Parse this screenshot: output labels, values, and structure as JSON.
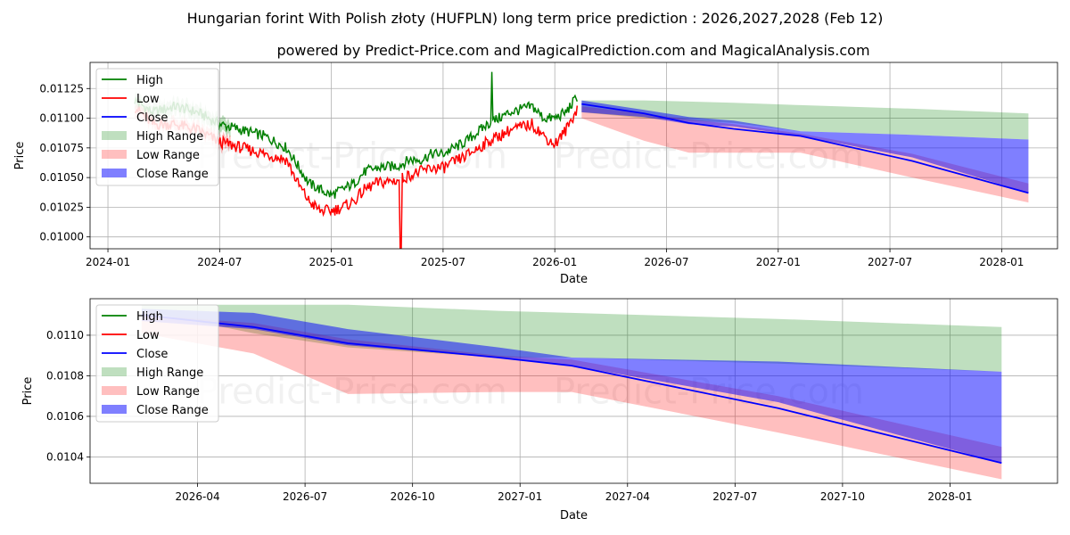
{
  "chart_data": [
    {
      "type": "line",
      "panel": "top",
      "title": "Hungarian forint With Polish złoty (HUFPLN) long term price prediction : 2026,2027,2028 (Feb 12)",
      "subtitle": "powered by Predict-Price.com and MagicalPrediction.com and MagicalAnalysis.com",
      "xlabel": "Date",
      "ylabel": "Price",
      "xlim": [
        2023.92,
        2028.25
      ],
      "ylim": [
        0.0099,
        0.01147
      ],
      "x_ticks": [
        {
          "value": 2024.0,
          "label": "2024-01"
        },
        {
          "value": 2024.5,
          "label": "2024-07"
        },
        {
          "value": 2025.0,
          "label": "2025-01"
        },
        {
          "value": 2025.5,
          "label": "2025-07"
        },
        {
          "value": 2026.0,
          "label": "2026-01"
        },
        {
          "value": 2026.5,
          "label": "2026-07"
        },
        {
          "value": 2027.0,
          "label": "2027-01"
        },
        {
          "value": 2027.5,
          "label": "2027-07"
        },
        {
          "value": 2028.0,
          "label": "2028-01"
        }
      ],
      "y_ticks": [
        {
          "value": 0.01,
          "label": "0.01000"
        },
        {
          "value": 0.01025,
          "label": "0.01025"
        },
        {
          "value": 0.0105,
          "label": "0.01050"
        },
        {
          "value": 0.01075,
          "label": "0.01075"
        },
        {
          "value": 0.011,
          "label": "0.01100"
        },
        {
          "value": 0.01125,
          "label": "0.01125"
        }
      ],
      "history": {
        "x": [
          2024.12,
          2024.2,
          2024.3,
          2024.4,
          2024.5,
          2024.6,
          2024.7,
          2024.8,
          2024.85,
          2024.9,
          2024.95,
          2025.0,
          2025.05,
          2025.1,
          2025.15,
          2025.2,
          2025.3,
          2025.35,
          2025.4,
          2025.45,
          2025.5,
          2025.6,
          2025.7,
          2025.8,
          2025.9,
          2025.95,
          2026.0,
          2026.05,
          2026.1
        ],
        "high": [
          0.01115,
          0.01105,
          0.0111,
          0.01105,
          0.01095,
          0.0109,
          0.01085,
          0.01075,
          0.0106,
          0.01045,
          0.0104,
          0.01035,
          0.0104,
          0.01045,
          0.01055,
          0.01058,
          0.0106,
          0.01065,
          0.01065,
          0.0107,
          0.0107,
          0.0108,
          0.01095,
          0.01105,
          0.0111,
          0.011,
          0.011,
          0.01105,
          0.01118
        ],
        "low": [
          0.0111,
          0.01095,
          0.01095,
          0.0109,
          0.0108,
          0.01075,
          0.0107,
          0.01065,
          0.01045,
          0.0103,
          0.01022,
          0.01022,
          0.01025,
          0.0103,
          0.0104,
          0.01045,
          0.01048,
          0.01052,
          0.01055,
          0.01058,
          0.01058,
          0.01068,
          0.0108,
          0.0109,
          0.01095,
          0.01085,
          0.01078,
          0.0109,
          0.01108
        ],
        "spikes": [
          {
            "x": 2025.72,
            "value": 0.01139,
            "series": "high"
          },
          {
            "x": 2025.31,
            "value": 0.0099,
            "series": "low"
          }
        ]
      },
      "forecast": {
        "x": [
          2026.12,
          2026.4,
          2026.6,
          2026.8,
          2027.1,
          2027.6,
          2028.12
        ],
        "high_range": [
          [
            0.01105,
            0.01115
          ],
          [
            0.011,
            0.01115
          ],
          [
            0.01098,
            0.01114
          ],
          [
            0.01096,
            0.01113
          ],
          [
            0.01089,
            0.01111
          ],
          [
            0.01086,
            0.01108
          ],
          [
            0.01082,
            0.01104
          ]
        ],
        "low_range": [
          [
            0.011,
            0.0111
          ],
          [
            0.01081,
            0.01104
          ],
          [
            0.01071,
            0.01099
          ],
          [
            0.01071,
            0.01095
          ],
          [
            0.01071,
            0.01087
          ],
          [
            0.0105,
            0.0107
          ],
          [
            0.01029,
            0.01045
          ]
        ],
        "close_range": [
          [
            0.01105,
            0.01115
          ],
          [
            0.01101,
            0.01107
          ],
          [
            0.01095,
            0.01101
          ],
          [
            0.01093,
            0.01098
          ],
          [
            0.01085,
            0.01089
          ],
          [
            0.01067,
            0.01086
          ],
          [
            0.01037,
            0.01082
          ]
        ],
        "close": [
          0.01112,
          0.01104,
          0.01096,
          0.01091,
          0.01085,
          0.01064,
          0.01037
        ]
      }
    },
    {
      "type": "line",
      "panel": "bottom",
      "xlabel": "Date",
      "ylabel": "Price",
      "xlim": [
        2026.0,
        2028.25
      ],
      "ylim": [
        0.01027,
        0.01118
      ],
      "x_ticks": [
        {
          "value": 2026.25,
          "label": "2026-04"
        },
        {
          "value": 2026.5,
          "label": "2026-07"
        },
        {
          "value": 2026.75,
          "label": "2026-10"
        },
        {
          "value": 2027.0,
          "label": "2027-01"
        },
        {
          "value": 2027.25,
          "label": "2027-04"
        },
        {
          "value": 2027.5,
          "label": "2027-07"
        },
        {
          "value": 2027.75,
          "label": "2027-10"
        },
        {
          "value": 2028.0,
          "label": "2028-01"
        }
      ],
      "y_ticks": [
        {
          "value": 0.0104,
          "label": "0.0104"
        },
        {
          "value": 0.0106,
          "label": "0.0106"
        },
        {
          "value": 0.0108,
          "label": "0.0108"
        },
        {
          "value": 0.011,
          "label": "0.0110"
        }
      ],
      "forecast": {
        "x": [
          2026.12,
          2026.38,
          2026.6,
          2026.95,
          2027.12,
          2027.6,
          2028.12
        ],
        "high_range": [
          [
            0.01112,
            0.01115
          ],
          [
            0.01101,
            0.01115
          ],
          [
            0.01094,
            0.01115
          ],
          [
            0.01089,
            0.01112
          ],
          [
            0.01089,
            0.01111
          ],
          [
            0.01086,
            0.01108
          ],
          [
            0.01082,
            0.01104
          ]
        ],
        "low_range": [
          [
            0.01101,
            0.0111
          ],
          [
            0.01091,
            0.01106
          ],
          [
            0.01071,
            0.01098
          ],
          [
            0.01072,
            0.0109
          ],
          [
            0.01072,
            0.01088
          ],
          [
            0.01052,
            0.0107
          ],
          [
            0.01029,
            0.01045
          ]
        ],
        "close_range": [
          [
            0.01107,
            0.01113
          ],
          [
            0.01103,
            0.01111
          ],
          [
            0.01095,
            0.01103
          ],
          [
            0.01089,
            0.01094
          ],
          [
            0.01085,
            0.01089
          ],
          [
            0.01067,
            0.01087
          ],
          [
            0.01037,
            0.01082
          ]
        ],
        "close": [
          0.0111,
          0.01104,
          0.01096,
          0.01089,
          0.01085,
          0.01064,
          0.01037
        ]
      }
    }
  ],
  "legend": {
    "location": "top-left",
    "entries": [
      {
        "label": "High",
        "kind": "line",
        "color": "#008000"
      },
      {
        "label": "Low",
        "kind": "line",
        "color": "#ff0000"
      },
      {
        "label": "Close",
        "kind": "line",
        "color": "#0000ff"
      },
      {
        "label": "High Range",
        "kind": "patch",
        "color": "#008000",
        "alpha": 0.25
      },
      {
        "label": "Low Range",
        "kind": "patch",
        "color": "#ff0000",
        "alpha": 0.25
      },
      {
        "label": "Close Range",
        "kind": "patch",
        "color": "#0000ff",
        "alpha": 0.5
      }
    ]
  },
  "watermark": "Predict-Price.com",
  "colors": {
    "high": "#008000",
    "low": "#ff0000",
    "close": "#0000ff",
    "grid": "#b0b0b0",
    "axis": "#000000"
  }
}
